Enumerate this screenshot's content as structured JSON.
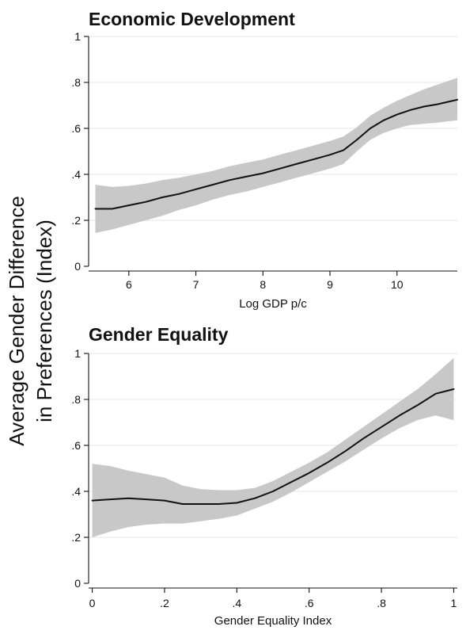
{
  "shared_ylabel": {
    "line1": "Average Gender Difference",
    "line2": "in Preferences (Index)"
  },
  "colors": {
    "band": "#c8c8c8",
    "line": "#111111",
    "grid": "#e7eceb"
  },
  "chart_data": [
    {
      "type": "line",
      "title": "Economic Development",
      "xlabel": "Log GDP p/c",
      "ylabel": "",
      "xlim": [
        5.4,
        10.9
      ],
      "ylim": [
        0,
        1
      ],
      "x_ticks": [
        6,
        7,
        8,
        9,
        10
      ],
      "x_tick_labels": [
        "6",
        "7",
        "8",
        "9",
        "10"
      ],
      "y_ticks": [
        0,
        0.2,
        0.4,
        0.6,
        0.8,
        1
      ],
      "y_tick_labels": [
        "0",
        ".2",
        ".4",
        ".6",
        ".8",
        "1"
      ],
      "grid": true,
      "series": [
        {
          "x": [
            5.5,
            5.75,
            6.0,
            6.25,
            6.5,
            6.75,
            7.0,
            7.25,
            7.5,
            7.75,
            8.0,
            8.25,
            8.5,
            8.75,
            9.0,
            9.2,
            9.4,
            9.6,
            9.8,
            10.0,
            10.2,
            10.4,
            10.6,
            10.9
          ],
          "values": [
            0.25,
            0.25,
            0.265,
            0.28,
            0.3,
            0.315,
            0.335,
            0.355,
            0.375,
            0.39,
            0.405,
            0.425,
            0.445,
            0.465,
            0.485,
            0.505,
            0.55,
            0.6,
            0.635,
            0.66,
            0.68,
            0.695,
            0.705,
            0.725
          ],
          "lower": [
            0.145,
            0.16,
            0.18,
            0.2,
            0.22,
            0.245,
            0.265,
            0.29,
            0.31,
            0.325,
            0.345,
            0.365,
            0.385,
            0.405,
            0.425,
            0.445,
            0.5,
            0.55,
            0.58,
            0.6,
            0.615,
            0.62,
            0.625,
            0.635
          ],
          "upper": [
            0.355,
            0.345,
            0.35,
            0.36,
            0.375,
            0.385,
            0.4,
            0.415,
            0.435,
            0.45,
            0.465,
            0.485,
            0.505,
            0.525,
            0.545,
            0.565,
            0.605,
            0.655,
            0.69,
            0.72,
            0.745,
            0.77,
            0.79,
            0.82
          ]
        }
      ]
    },
    {
      "type": "line",
      "title": "Gender Equality",
      "xlabel": "Gender Equality Index",
      "ylabel": "",
      "xlim": [
        -0.01,
        1.01
      ],
      "ylim": [
        0,
        1
      ],
      "x_ticks": [
        0,
        0.2,
        0.4,
        0.6,
        0.8,
        1
      ],
      "x_tick_labels": [
        "0",
        ".2",
        ".4",
        ".6",
        ".8",
        "1"
      ],
      "y_ticks": [
        0,
        0.2,
        0.4,
        0.6,
        0.8,
        1
      ],
      "y_tick_labels": [
        "0",
        ".2",
        ".4",
        ".6",
        ".8",
        "1"
      ],
      "grid": true,
      "series": [
        {
          "x": [
            0.0,
            0.05,
            0.1,
            0.15,
            0.2,
            0.25,
            0.3,
            0.35,
            0.4,
            0.45,
            0.5,
            0.55,
            0.6,
            0.65,
            0.7,
            0.75,
            0.8,
            0.85,
            0.9,
            0.95,
            1.0
          ],
          "values": [
            0.36,
            0.365,
            0.37,
            0.365,
            0.36,
            0.345,
            0.345,
            0.345,
            0.35,
            0.37,
            0.4,
            0.44,
            0.48,
            0.525,
            0.575,
            0.63,
            0.68,
            0.73,
            0.775,
            0.825,
            0.845
          ],
          "lower": [
            0.2,
            0.225,
            0.245,
            0.255,
            0.26,
            0.26,
            0.27,
            0.28,
            0.295,
            0.325,
            0.355,
            0.395,
            0.44,
            0.485,
            0.53,
            0.58,
            0.63,
            0.675,
            0.71,
            0.73,
            0.71
          ],
          "upper": [
            0.52,
            0.51,
            0.49,
            0.475,
            0.46,
            0.425,
            0.41,
            0.405,
            0.405,
            0.415,
            0.445,
            0.485,
            0.525,
            0.57,
            0.625,
            0.68,
            0.735,
            0.79,
            0.845,
            0.91,
            0.98
          ]
        }
      ]
    }
  ]
}
